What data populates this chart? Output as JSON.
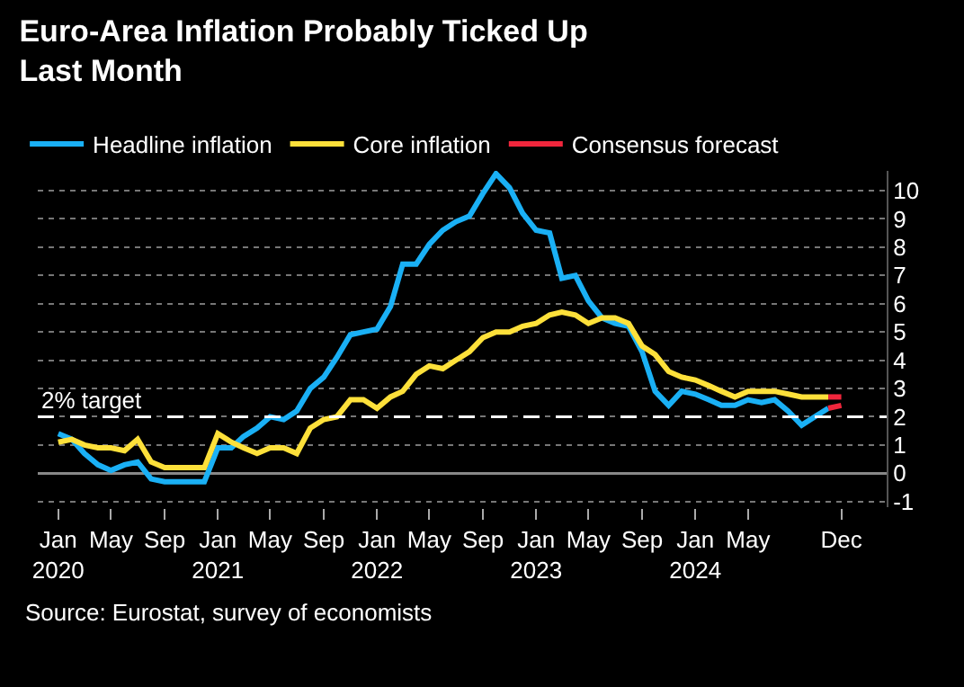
{
  "chart_data": {
    "type": "line",
    "title": "Euro-Area Inflation Probably Ticked Up\nLast Month",
    "annotations": [
      "Source: Eurostat, survey of economists"
    ],
    "x": [
      "2020-01",
      "2020-02",
      "2020-03",
      "2020-04",
      "2020-05",
      "2020-06",
      "2020-07",
      "2020-08",
      "2020-09",
      "2020-10",
      "2020-11",
      "2020-12",
      "2021-01",
      "2021-02",
      "2021-03",
      "2021-04",
      "2021-05",
      "2021-06",
      "2021-07",
      "2021-08",
      "2021-09",
      "2021-10",
      "2021-11",
      "2021-12",
      "2022-01",
      "2022-02",
      "2022-03",
      "2022-04",
      "2022-05",
      "2022-06",
      "2022-07",
      "2022-08",
      "2022-09",
      "2022-10",
      "2022-11",
      "2022-12",
      "2023-01",
      "2023-02",
      "2023-03",
      "2023-04",
      "2023-05",
      "2023-06",
      "2023-07",
      "2023-08",
      "2023-09",
      "2023-10",
      "2023-11",
      "2023-12",
      "2024-01",
      "2024-02",
      "2024-03",
      "2024-04",
      "2024-05",
      "2024-06",
      "2024-07",
      "2024-08",
      "2024-09",
      "2024-10",
      "2024-11"
    ],
    "series": [
      {
        "name": "Headline inflation",
        "color": "#1ab0f5",
        "values": [
          1.4,
          1.2,
          0.7,
          0.3,
          0.1,
          0.3,
          0.4,
          -0.2,
          -0.3,
          -0.3,
          -0.3,
          -0.3,
          0.9,
          0.9,
          1.3,
          1.6,
          2.0,
          1.9,
          2.2,
          3.0,
          3.4,
          4.1,
          4.9,
          5.0,
          5.1,
          5.9,
          7.4,
          7.4,
          8.1,
          8.6,
          8.9,
          9.1,
          9.9,
          10.6,
          10.1,
          9.2,
          8.6,
          8.5,
          6.9,
          7.0,
          6.1,
          5.5,
          5.3,
          5.2,
          4.3,
          2.9,
          2.4,
          2.9,
          2.8,
          2.6,
          2.4,
          2.4,
          2.6,
          2.5,
          2.6,
          2.2,
          1.7,
          2.0,
          2.3
        ]
      },
      {
        "name": "Core inflation",
        "color": "#fde03a",
        "values": [
          1.1,
          1.2,
          1.0,
          0.9,
          0.9,
          0.8,
          1.2,
          0.4,
          0.2,
          0.2,
          0.2,
          0.2,
          1.4,
          1.1,
          0.9,
          0.7,
          0.9,
          0.9,
          0.7,
          1.6,
          1.9,
          2.0,
          2.6,
          2.6,
          2.3,
          2.7,
          2.9,
          3.5,
          3.8,
          3.7,
          4.0,
          4.3,
          4.8,
          5.0,
          5.0,
          5.2,
          5.3,
          5.6,
          5.7,
          5.6,
          5.3,
          5.5,
          5.5,
          5.3,
          4.5,
          4.2,
          3.6,
          3.4,
          3.3,
          3.1,
          2.9,
          2.7,
          2.9,
          2.9,
          2.9,
          2.8,
          2.7,
          2.7,
          2.7
        ]
      },
      {
        "name": "Consensus forecast",
        "color": "#f0263c",
        "x": [
          "2024-11",
          "2024-12"
        ],
        "values": [
          2.3,
          2.4
        ]
      },
      {
        "color": "#f0263c",
        "x": [
          "2024-11",
          "2024-12"
        ],
        "values": [
          2.7,
          2.7
        ]
      }
    ],
    "xlim": [
      "2019-11-15",
      "2025-03-15"
    ],
    "xticks": [
      {
        "value": "2020-01",
        "label": "Jan\n2020"
      },
      {
        "value": "2020-05",
        "label": "May"
      },
      {
        "value": "2020-09",
        "label": "Sep"
      },
      {
        "value": "2021-01",
        "label": "Jan\n2021"
      },
      {
        "value": "2021-05",
        "label": "May"
      },
      {
        "value": "2021-09",
        "label": "Sep"
      },
      {
        "value": "2022-01",
        "label": "Jan\n2022"
      },
      {
        "value": "2022-05",
        "label": "May"
      },
      {
        "value": "2022-09",
        "label": "Sep"
      },
      {
        "value": "2023-01",
        "label": "Jan\n2023"
      },
      {
        "value": "2023-05",
        "label": "May"
      },
      {
        "value": "2023-09",
        "label": "Sep"
      },
      {
        "value": "2024-01",
        "label": "Jan\n2024"
      },
      {
        "value": "2024-05",
        "label": "May"
      },
      {
        "value": "2024-12",
        "label": "Dec"
      }
    ],
    "ylim": [
      -1.2,
      10.7
    ],
    "yticks": [
      -1,
      0,
      1,
      2,
      3,
      4,
      5,
      6,
      7,
      8,
      9,
      10
    ],
    "ref_lines": [
      {
        "axis": "y",
        "value": 2,
        "label": "2% target",
        "color": "#ffffff",
        "line_style": "dashed"
      }
    ],
    "grid": "y",
    "legend": "top left",
    "marker": "none",
    "line_style": "solid"
  }
}
